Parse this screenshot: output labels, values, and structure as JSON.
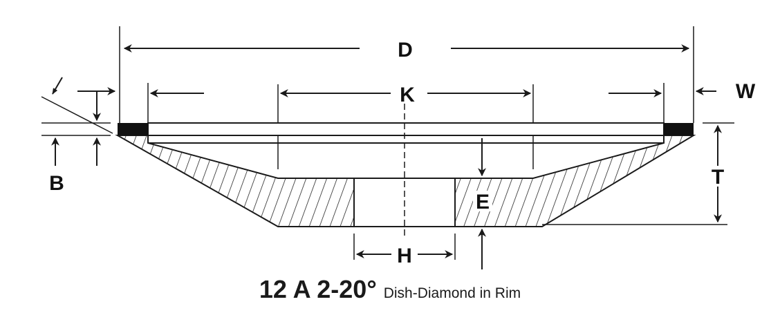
{
  "labels": {
    "D": "D",
    "K": "K",
    "W": "W",
    "B": "B",
    "T": "T",
    "E": "E",
    "H": "H"
  },
  "caption": {
    "code": "12 A 2-20°",
    "description": "Dish-Diamond in Rim"
  },
  "colors": {
    "ink": "#1a1a1a",
    "background": "#ffffff"
  }
}
